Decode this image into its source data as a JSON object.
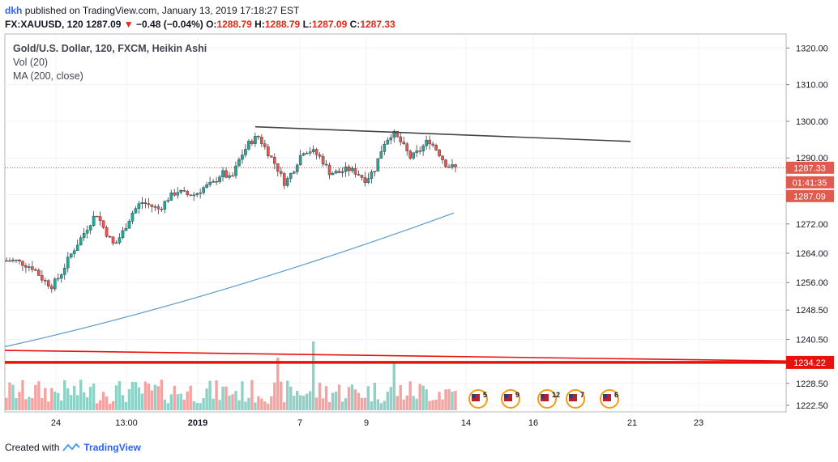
{
  "header": {
    "author": "dkh",
    "published_text": "published on TradingView.com, January 13, 2019 17:18:27 EST"
  },
  "quote": {
    "symbol": "FX:XAUUSD, 120",
    "last": "1287.09",
    "change": "−0.48 (−0.04%)",
    "open_label": "O:",
    "open": "1288.79",
    "high_label": "H:",
    "high": "1288.79",
    "low_label": "L:",
    "low": "1287.09",
    "close_label": "C:",
    "close": "1287.33"
  },
  "legend": {
    "title": "Gold/U.S. Dollar, 120, FXCM, Heikin Ashi",
    "vol": "Vol (20)",
    "ma": "MA (200, close)"
  },
  "footer": {
    "created_with": "Created with",
    "brand": "TradingView"
  },
  "colors": {
    "up": "#26a69a",
    "down": "#ef5350",
    "up_vol": "#8fd1c7",
    "down_vol": "#f5a3a1",
    "ma": "#5c9ccc",
    "trendline": "#444444",
    "support": "#e8120c",
    "price_tag": "#e05a4e"
  },
  "event_icons": [
    {
      "icon": "us-flag-icon",
      "label": "5"
    },
    {
      "icon": "us-flag-icon",
      "label": "9"
    },
    {
      "icon": "us-flag-icon",
      "label": "12"
    },
    {
      "icon": "us-flag-icon",
      "label": "7"
    },
    {
      "icon": "us-flag-icon",
      "label": "6"
    }
  ],
  "chart_data": {
    "type": "candlestick",
    "title": "Gold/U.S. Dollar, 120, FXCM, Heikin Ashi",
    "y_ticks": [
      1222.5,
      1228.5,
      1234.22,
      1240.5,
      1248.5,
      1256.0,
      1264.0,
      1272.0,
      1280.0,
      1290.0,
      1300.0,
      1310.0,
      1320.0
    ],
    "y_tick_labels": [
      "1222.50",
      "1228.50",
      "1234.22",
      "1240.50",
      "1248.50",
      "1256.00",
      "1264.00",
      "1272.00",
      "1280.00",
      "1290.00",
      "1300.00",
      "1310.00",
      "1320.00"
    ],
    "x_tick_labels": [
      "24",
      "13:00",
      "2019",
      "7",
      "9",
      "14",
      "16",
      "21",
      "23"
    ],
    "price_labels": {
      "last": "1287.33",
      "countdown": "01:41:35",
      "low": "1287.09",
      "support": "1234.22"
    },
    "last_price": 1287.33,
    "support_level": 1234.22,
    "resistance_trendline": [
      [
        0,
        1298.5
      ],
      [
        1,
        1294.5
      ]
    ],
    "support_trendline": [
      [
        0,
        1237.5
      ],
      [
        1,
        1234.6
      ]
    ],
    "ma_200": {
      "start": 1238.5,
      "end": 1275
    },
    "close_path": [
      1262,
      1262,
      1261,
      1260,
      1257,
      1255,
      1258,
      1263,
      1267,
      1271,
      1275,
      1270,
      1266,
      1270,
      1275,
      1278,
      1277,
      1276,
      1279,
      1281,
      1280,
      1280,
      1282,
      1283,
      1286,
      1284,
      1290,
      1294,
      1296,
      1292,
      1288,
      1283,
      1287,
      1292,
      1292,
      1290,
      1286,
      1286,
      1287,
      1286,
      1284,
      1287,
      1294,
      1297,
      1294,
      1290,
      1292,
      1295,
      1292,
      1288,
      1287.33
    ],
    "volume_max": 45
  }
}
